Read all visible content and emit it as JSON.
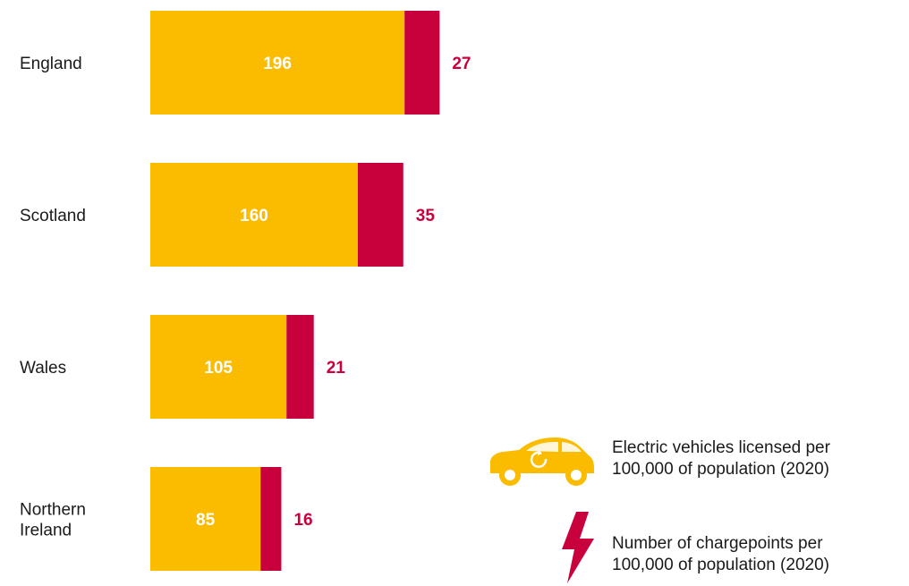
{
  "chart_data": {
    "type": "bar",
    "orientation": "horizontal",
    "stacked": true,
    "categories": [
      "England",
      "Scotland",
      "Wales",
      "Northern Ireland"
    ],
    "category_lines": [
      [
        "England"
      ],
      [
        "Scotland"
      ],
      [
        "Wales"
      ],
      [
        "Northern",
        "Ireland"
      ]
    ],
    "series": [
      {
        "name": "Electric vehicles licensed per 100,000 of population (2020)",
        "values": [
          196,
          160,
          105,
          85
        ],
        "color": "#fbbc00"
      },
      {
        "name": "Number of chargepoints per 100,000 of population (2020)",
        "values": [
          27,
          35,
          21,
          16
        ],
        "color": "#c8003c"
      }
    ],
    "legend": {
      "placement": "bottom-right",
      "items": [
        {
          "icon": "electric-car-icon",
          "lines": [
            "Electric vehicles licensed per",
            "100,000 of population (2020)"
          ]
        },
        {
          "icon": "lightning-bolt-icon",
          "lines": [
            "Number of chargepoints per",
            "100,000 of population (2020)"
          ]
        }
      ]
    },
    "grid": false,
    "axes_visible": false
  }
}
